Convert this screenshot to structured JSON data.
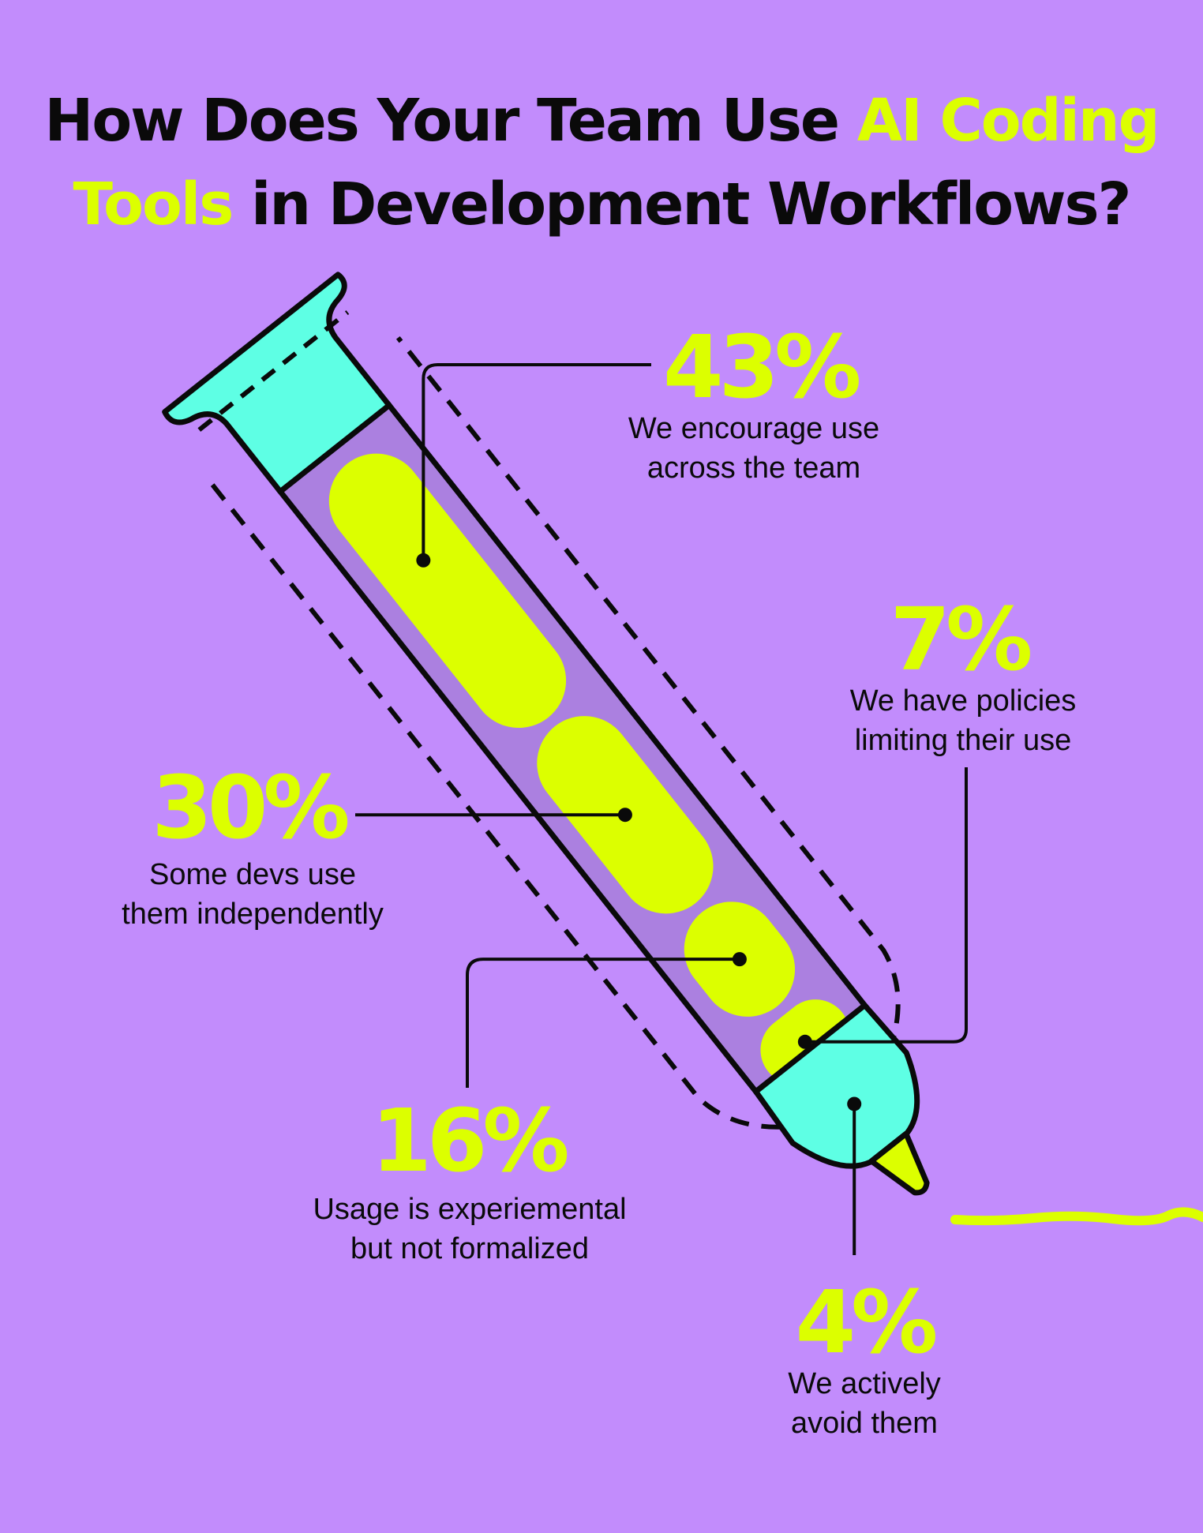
{
  "title": {
    "part1": "How Does Your Team Use ",
    "highlight": "AI Coding Tools",
    "part2": " in Development Workflows?"
  },
  "colors": {
    "background": "#c28cfc",
    "accent": "#dcff00",
    "cap": "#5effe4",
    "barrel": "#ab80e0",
    "ink": "#0a0a0a"
  },
  "chart_data": {
    "type": "pie",
    "title": "How Does Your Team Use AI Coding Tools in Development Workflows?",
    "unit": "%",
    "segments": [
      {
        "label_line1": "We encourage use",
        "label_line2": "across the team",
        "value": 43,
        "display": "43%"
      },
      {
        "label_line1": "Some devs use",
        "label_line2": "them independently",
        "value": 30,
        "display": "30%"
      },
      {
        "label_line1": "Usage is experiemental",
        "label_line2": "but not formalized",
        "value": 16,
        "display": "16%"
      },
      {
        "label_line1": "We have policies",
        "label_line2": "limiting their use",
        "value": 7,
        "display": "7%"
      },
      {
        "label_line1": "We actively",
        "label_line2": "avoid them",
        "value": 4,
        "display": "4%"
      }
    ]
  }
}
